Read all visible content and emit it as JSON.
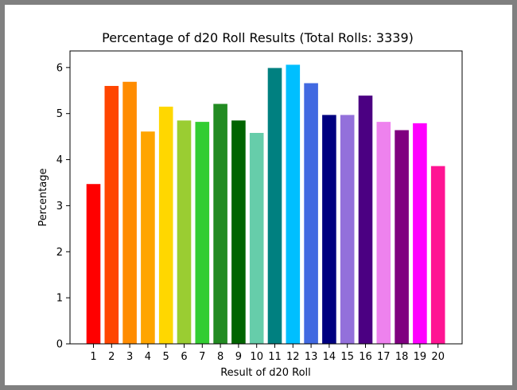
{
  "chart_data": {
    "type": "bar",
    "title": "Percentage of d20 Roll Results (Total Rolls: 3339)",
    "xlabel": "Result of d20 Roll",
    "ylabel": "Percentage",
    "categories": [
      "1",
      "2",
      "3",
      "4",
      "5",
      "6",
      "7",
      "8",
      "9",
      "10",
      "11",
      "12",
      "13",
      "14",
      "15",
      "16",
      "17",
      "18",
      "19",
      "20"
    ],
    "values": [
      3.47,
      5.6,
      5.69,
      4.61,
      5.15,
      4.85,
      4.82,
      5.21,
      4.85,
      4.58,
      5.99,
      6.06,
      5.66,
      4.97,
      4.97,
      5.39,
      4.82,
      4.64,
      4.79,
      3.86
    ],
    "colors": [
      "#ff0000",
      "#ff4500",
      "#ff8c00",
      "#ffa500",
      "#ffd700",
      "#9acd32",
      "#32cd32",
      "#228b22",
      "#006400",
      "#66cdaa",
      "#008080",
      "#00bfff",
      "#4169e1",
      "#000080",
      "#9370db",
      "#4b0082",
      "#ee82ee",
      "#800080",
      "#ff00ff",
      "#ff1493"
    ],
    "yticks": [
      0,
      1,
      2,
      3,
      4,
      5,
      6
    ],
    "ylim": [
      0,
      6.36
    ],
    "grid": false,
    "legend": "none"
  }
}
